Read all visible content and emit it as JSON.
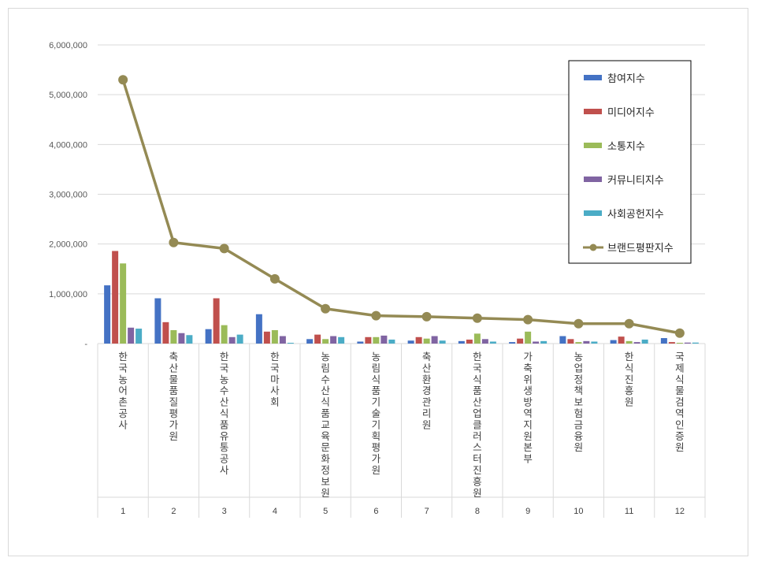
{
  "chart_data": {
    "type": "bar",
    "title": "",
    "xlabel": "",
    "ylabel": "",
    "ylim": [
      0,
      6000000
    ],
    "yticks": [
      0,
      1000000,
      2000000,
      3000000,
      4000000,
      5000000,
      6000000
    ],
    "ytick_labels": [
      "-",
      "1,000,000",
      "2,000,000",
      "3,000,000",
      "4,000,000",
      "5,000,000",
      "6,000,000"
    ],
    "grid": true,
    "legend_position": "top-right",
    "indices": [
      "1",
      "2",
      "3",
      "4",
      "5",
      "6",
      "7",
      "8",
      "9",
      "10",
      "11",
      "12"
    ],
    "categories": [
      "한국농어촌공사",
      "축산물품질평가원",
      "한국농수산식품유통공사",
      "한국마사회",
      "농림수산식품교육문화정보원",
      "농림식품기술기획평가원",
      "축산환경관리원",
      "한국식품산업클러스터진흥원",
      "가축위생방역지원본부",
      "농업정책보험금융원",
      "한식진흥원",
      "국제식물검역인증원"
    ],
    "series": [
      {
        "name": "참여지수",
        "type": "bar",
        "color": "#4472c4",
        "values": [
          1170000,
          910000,
          290000,
          590000,
          90000,
          40000,
          60000,
          50000,
          30000,
          150000,
          70000,
          110000
        ]
      },
      {
        "name": "미디어지수",
        "type": "bar",
        "color": "#c0504d",
        "values": [
          1860000,
          430000,
          910000,
          240000,
          180000,
          130000,
          130000,
          80000,
          100000,
          90000,
          140000,
          30000
        ]
      },
      {
        "name": "소통지수",
        "type": "bar",
        "color": "#9bbb59",
        "values": [
          1610000,
          270000,
          370000,
          270000,
          90000,
          130000,
          100000,
          200000,
          240000,
          30000,
          50000,
          10000
        ]
      },
      {
        "name": "커뮤니티지수",
        "type": "bar",
        "color": "#8064a2",
        "values": [
          320000,
          210000,
          130000,
          150000,
          150000,
          160000,
          150000,
          90000,
          40000,
          50000,
          30000,
          20000
        ]
      },
      {
        "name": "사회공헌지수",
        "type": "bar",
        "color": "#4bacc6",
        "values": [
          300000,
          170000,
          180000,
          10000,
          130000,
          80000,
          60000,
          40000,
          50000,
          40000,
          80000,
          20000
        ]
      },
      {
        "name": "브랜드평판지수",
        "type": "line",
        "color": "#948a54",
        "values": [
          5300000,
          2030000,
          1910000,
          1300000,
          700000,
          560000,
          540000,
          510000,
          480000,
          400000,
          400000,
          210000
        ]
      }
    ]
  }
}
